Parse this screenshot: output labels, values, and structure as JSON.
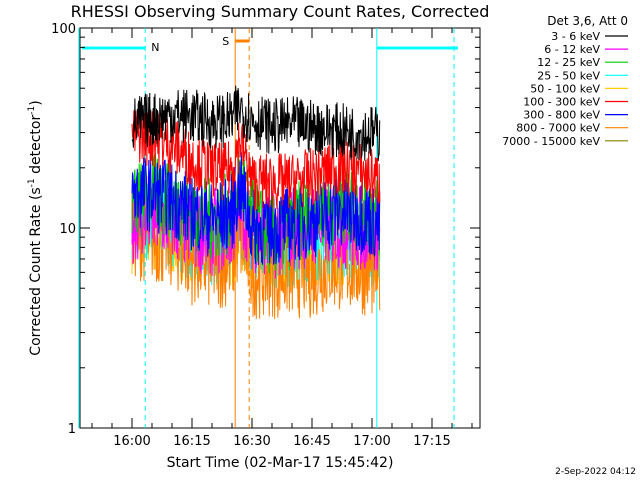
{
  "chart_data": {
    "type": "line",
    "title": "RHESSI Observing Summary Count Rates, Corrected",
    "xlabel": "Start Time (02-Mar-17 15:45:42)",
    "ylabel_main": "Corrected Count Rate (s",
    "ylabel_sup1": "-1",
    "ylabel_mid": " detector",
    "ylabel_sup2": "-1",
    "ylabel_end": ")",
    "ylog": true,
    "ylim": [
      1,
      100
    ],
    "xlim_min": [
      -13,
      87
    ],
    "y_ticks": [
      {
        "v": 1,
        "label": "1"
      },
      {
        "v": 10,
        "label": "10"
      },
      {
        "v": 100,
        "label": "100"
      }
    ],
    "x_ticks": [
      {
        "t": 0,
        "label": "16:00"
      },
      {
        "t": 15,
        "label": "16:15"
      },
      {
        "t": 30,
        "label": "16:30"
      },
      {
        "t": 45,
        "label": "16:45"
      },
      {
        "t": 60,
        "label": "17:00"
      },
      {
        "t": 75,
        "label": "17:15"
      }
    ],
    "legend_header": "Det 3,6, Att 0",
    "legend_placement": "right",
    "series": [
      {
        "name": "3 - 6 keV",
        "color": "#000000",
        "points": [
          [
            0,
            33
          ],
          [
            5,
            35
          ],
          [
            10,
            37
          ],
          [
            15,
            36
          ],
          [
            20,
            34
          ],
          [
            25,
            35
          ],
          [
            27,
            40
          ],
          [
            30,
            35
          ],
          [
            35,
            32
          ],
          [
            40,
            33
          ],
          [
            45,
            32
          ],
          [
            50,
            31
          ],
          [
            55,
            30
          ],
          [
            60,
            30
          ],
          [
            62,
            29
          ]
        ]
      },
      {
        "name": "6 - 12 keV",
        "color": "#ff00ff",
        "points": [
          [
            0,
            11
          ],
          [
            5,
            11.5
          ],
          [
            10,
            11
          ],
          [
            15,
            10
          ],
          [
            20,
            9.5
          ],
          [
            25,
            10
          ],
          [
            27,
            13
          ],
          [
            30,
            10
          ],
          [
            35,
            9
          ],
          [
            40,
            10
          ],
          [
            45,
            10.5
          ],
          [
            50,
            10.5
          ],
          [
            55,
            10
          ],
          [
            60,
            10
          ],
          [
            62,
            10
          ]
        ]
      },
      {
        "name": "12 - 25 keV",
        "color": "#00cc00",
        "points": [
          [
            0,
            13
          ],
          [
            5,
            15
          ],
          [
            10,
            14
          ],
          [
            15,
            12
          ],
          [
            20,
            11
          ],
          [
            25,
            12
          ],
          [
            27,
            18
          ],
          [
            30,
            11
          ],
          [
            35,
            9
          ],
          [
            40,
            10
          ],
          [
            45,
            12
          ],
          [
            50,
            13
          ],
          [
            55,
            13
          ],
          [
            60,
            12
          ],
          [
            62,
            11
          ]
        ]
      },
      {
        "name": "25 - 50 keV",
        "color": "#00ffff",
        "points": [
          [
            0,
            11
          ],
          [
            5,
            11
          ],
          [
            10,
            10
          ],
          [
            15,
            9
          ],
          [
            20,
            8.5
          ],
          [
            25,
            9
          ],
          [
            27,
            12
          ],
          [
            30,
            9
          ],
          [
            35,
            8
          ],
          [
            40,
            8.5
          ],
          [
            45,
            9
          ],
          [
            50,
            9
          ],
          [
            55,
            9
          ],
          [
            60,
            8.5
          ],
          [
            62,
            8.5
          ]
        ]
      },
      {
        "name": "50 - 100 keV",
        "color": "#ffcc00",
        "points": [
          [
            0,
            10
          ],
          [
            5,
            10
          ],
          [
            10,
            9.5
          ],
          [
            15,
            9
          ],
          [
            20,
            8.5
          ],
          [
            25,
            8.5
          ],
          [
            27,
            10
          ],
          [
            30,
            8.5
          ],
          [
            35,
            8
          ],
          [
            40,
            8
          ],
          [
            45,
            8.5
          ],
          [
            50,
            8.5
          ],
          [
            55,
            8.5
          ],
          [
            60,
            8
          ],
          [
            62,
            8
          ]
        ]
      },
      {
        "name": "100 - 300 keV",
        "color": "#ff0000",
        "points": [
          [
            0,
            30
          ],
          [
            5,
            28
          ],
          [
            10,
            26
          ],
          [
            15,
            22
          ],
          [
            20,
            20
          ],
          [
            23,
            19
          ],
          [
            25,
            20
          ],
          [
            27,
            28
          ],
          [
            29,
            20
          ],
          [
            30,
            17
          ],
          [
            35,
            17
          ],
          [
            40,
            17
          ],
          [
            45,
            18
          ],
          [
            50,
            20
          ],
          [
            55,
            20
          ],
          [
            60,
            18
          ],
          [
            62,
            17
          ]
        ]
      },
      {
        "name": "300 - 800 keV",
        "color": "#0000ff",
        "points": [
          [
            0,
            15
          ],
          [
            5,
            15
          ],
          [
            10,
            14
          ],
          [
            15,
            12
          ],
          [
            20,
            11
          ],
          [
            25,
            12
          ],
          [
            27,
            16
          ],
          [
            30,
            10
          ],
          [
            35,
            10
          ],
          [
            40,
            10.5
          ],
          [
            45,
            11
          ],
          [
            50,
            12
          ],
          [
            55,
            12
          ],
          [
            60,
            11
          ],
          [
            62,
            10
          ]
        ]
      },
      {
        "name": "800 - 7000 keV",
        "color": "#ff8000",
        "points": [
          [
            0,
            9.5
          ],
          [
            5,
            9
          ],
          [
            10,
            8.5
          ],
          [
            15,
            7
          ],
          [
            20,
            6.5
          ],
          [
            25,
            7
          ],
          [
            27,
            9
          ],
          [
            30,
            6
          ],
          [
            35,
            6
          ],
          [
            40,
            6
          ],
          [
            45,
            6
          ],
          [
            50,
            6.5
          ],
          [
            55,
            6.5
          ],
          [
            60,
            6
          ],
          [
            62,
            6
          ]
        ]
      },
      {
        "name": "7000 - 15000 keV",
        "color": "#808000",
        "points": []
      }
    ],
    "annotations": [
      {
        "label": "N",
        "color": "#00ffff"
      },
      {
        "label": "S",
        "color": "#ff8000"
      }
    ],
    "timestamp": "2-Sep-2022 04:12"
  }
}
